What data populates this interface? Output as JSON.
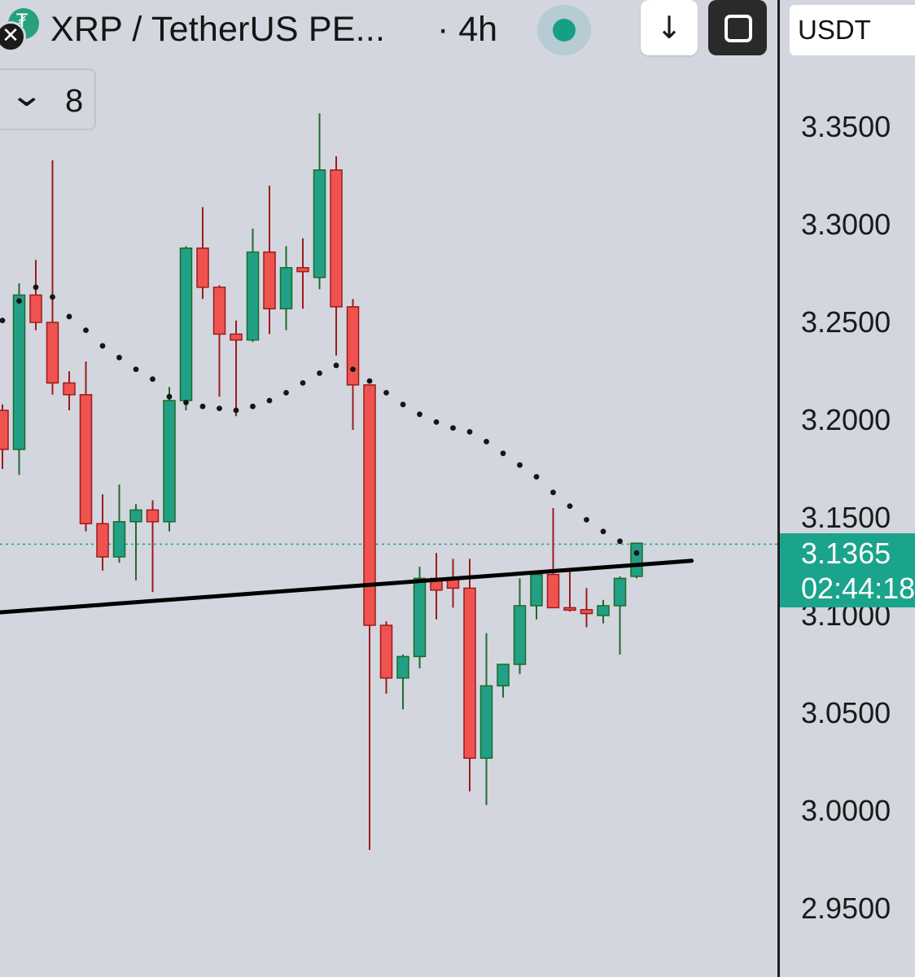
{
  "header": {
    "symbol": "XRP / TetherUS PE...",
    "interval": "· 4h",
    "download_icon": "↓",
    "close_icon": "✕"
  },
  "indicators": {
    "count": "8",
    "chevron": "⌄"
  },
  "axis": {
    "currency": "USDT",
    "last_price": "3.1365",
    "countdown": "02:44:18"
  },
  "colors": {
    "up": "#21a085",
    "down": "#ef5350",
    "up_border": "#1d6b2a",
    "down_border": "#9e1b1b",
    "sar": "#151515",
    "trendline": "#000000",
    "price_line": "#1aa48b"
  },
  "chart_data": {
    "type": "candlestick",
    "timeframe": "4h",
    "y_ticks": [
      "3.3500",
      "3.3000",
      "3.2500",
      "3.2000",
      "3.1500",
      "3.1000",
      "3.0500",
      "3.0000",
      "2.9500"
    ],
    "tick_values": [
      3.35,
      3.3,
      3.25,
      3.2,
      3.15,
      3.1,
      3.05,
      3.0,
      2.95
    ],
    "ylim": [
      2.915,
      3.415
    ],
    "last_price": 3.1365,
    "candles": [
      {
        "o": 3.205,
        "h": 3.208,
        "l": 3.175,
        "c": 3.185
      },
      {
        "o": 3.185,
        "h": 3.27,
        "l": 3.172,
        "c": 3.264
      },
      {
        "o": 3.264,
        "h": 3.282,
        "l": 3.246,
        "c": 3.25
      },
      {
        "o": 3.25,
        "h": 3.333,
        "l": 3.213,
        "c": 3.219
      },
      {
        "o": 3.219,
        "h": 3.225,
        "l": 3.205,
        "c": 3.213
      },
      {
        "o": 3.213,
        "h": 3.23,
        "l": 3.143,
        "c": 3.147
      },
      {
        "o": 3.147,
        "h": 3.162,
        "l": 3.123,
        "c": 3.13
      },
      {
        "o": 3.13,
        "h": 3.167,
        "l": 3.127,
        "c": 3.148
      },
      {
        "o": 3.148,
        "h": 3.157,
        "l": 3.118,
        "c": 3.154
      },
      {
        "o": 3.154,
        "h": 3.159,
        "l": 3.112,
        "c": 3.148
      },
      {
        "o": 3.148,
        "h": 3.217,
        "l": 3.143,
        "c": 3.21
      },
      {
        "o": 3.21,
        "h": 3.289,
        "l": 3.205,
        "c": 3.288
      },
      {
        "o": 3.288,
        "h": 3.309,
        "l": 3.262,
        "c": 3.268
      },
      {
        "o": 3.268,
        "h": 3.269,
        "l": 3.212,
        "c": 3.244
      },
      {
        "o": 3.244,
        "h": 3.251,
        "l": 3.202,
        "c": 3.241
      },
      {
        "o": 3.241,
        "h": 3.298,
        "l": 3.24,
        "c": 3.286
      },
      {
        "o": 3.286,
        "h": 3.32,
        "l": 3.244,
        "c": 3.257
      },
      {
        "o": 3.257,
        "h": 3.289,
        "l": 3.246,
        "c": 3.278
      },
      {
        "o": 3.278,
        "h": 3.293,
        "l": 3.257,
        "c": 3.276
      },
      {
        "o": 3.273,
        "h": 3.357,
        "l": 3.267,
        "c": 3.328
      },
      {
        "o": 3.328,
        "h": 3.335,
        "l": 3.233,
        "c": 3.258
      },
      {
        "o": 3.258,
        "h": 3.262,
        "l": 3.195,
        "c": 3.218
      },
      {
        "o": 3.218,
        "h": 3.218,
        "l": 2.98,
        "c": 3.095
      },
      {
        "o": 3.095,
        "h": 3.097,
        "l": 3.06,
        "c": 3.068
      },
      {
        "o": 3.068,
        "h": 3.08,
        "l": 3.052,
        "c": 3.079
      },
      {
        "o": 3.079,
        "h": 3.125,
        "l": 3.073,
        "c": 3.119
      },
      {
        "o": 3.119,
        "h": 3.132,
        "l": 3.098,
        "c": 3.113
      },
      {
        "o": 3.119,
        "h": 3.129,
        "l": 3.104,
        "c": 3.114
      },
      {
        "o": 3.114,
        "h": 3.129,
        "l": 3.01,
        "c": 3.027
      },
      {
        "o": 3.027,
        "h": 3.091,
        "l": 3.003,
        "c": 3.064
      },
      {
        "o": 3.064,
        "h": 3.075,
        "l": 3.058,
        "c": 3.075
      },
      {
        "o": 3.075,
        "h": 3.119,
        "l": 3.07,
        "c": 3.105
      },
      {
        "o": 3.105,
        "h": 3.123,
        "l": 3.098,
        "c": 3.121
      },
      {
        "o": 3.121,
        "h": 3.155,
        "l": 3.104,
        "c": 3.104
      },
      {
        "o": 3.104,
        "h": 3.124,
        "l": 3.102,
        "c": 3.103
      },
      {
        "o": 3.103,
        "h": 3.114,
        "l": 3.094,
        "c": 3.101
      },
      {
        "o": 3.1,
        "h": 3.108,
        "l": 3.096,
        "c": 3.105
      },
      {
        "o": 3.105,
        "h": 3.12,
        "l": 3.08,
        "c": 3.119
      },
      {
        "o": 3.12,
        "h": 3.137,
        "l": 3.119,
        "c": 3.137
      }
    ],
    "sar": [
      3.251,
      3.261,
      3.268,
      3.263,
      3.253,
      3.246,
      3.238,
      3.232,
      3.226,
      3.221,
      3.212,
      3.209,
      3.207,
      3.206,
      3.205,
      3.207,
      3.21,
      3.214,
      3.219,
      3.224,
      3.228,
      3.226,
      3.22,
      3.214,
      3.208,
      3.203,
      3.199,
      3.196,
      3.194,
      3.189,
      3.183,
      3.177,
      3.171,
      3.163,
      3.156,
      3.149,
      3.143,
      3.138,
      3.132
    ],
    "trendline": [
      {
        "x_index": -1.1,
        "y": 3.101
      },
      {
        "x_index": 41.3,
        "y": 3.128
      }
    ]
  }
}
